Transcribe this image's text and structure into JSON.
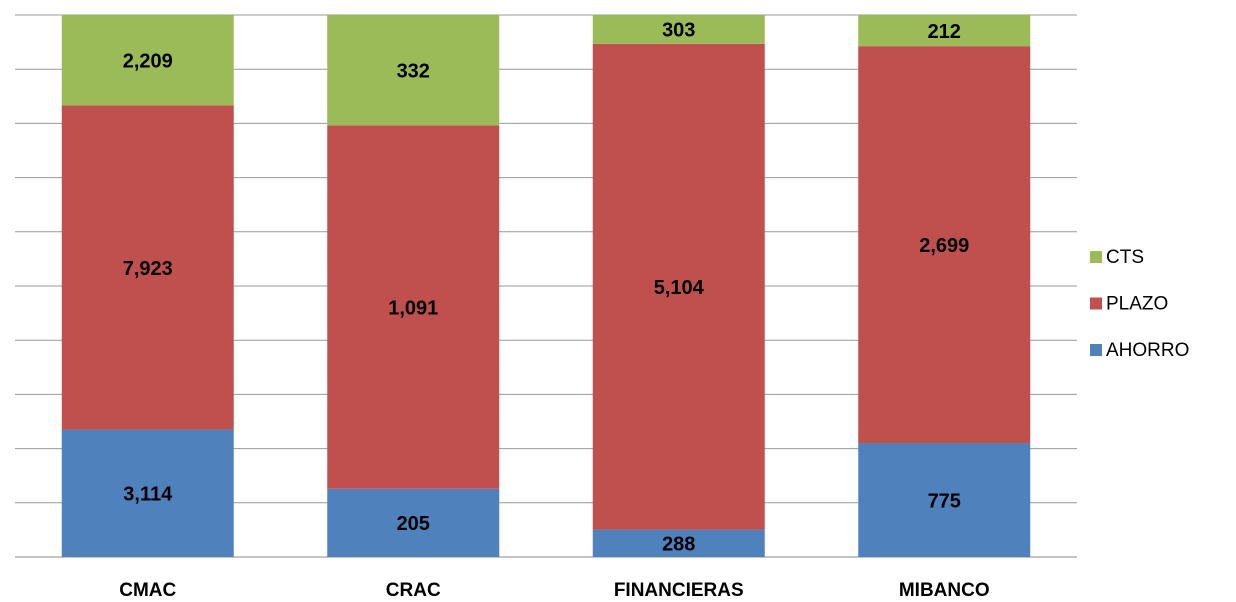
{
  "chart_data": {
    "type": "bar",
    "stacking": "percent",
    "categories": [
      "CMAC",
      "CRAC",
      "FINANCIERAS",
      "MIBANCO"
    ],
    "series": [
      {
        "name": "AHORRO",
        "color": "#4f81bd",
        "values": [
          3114,
          205,
          288,
          775
        ],
        "value_labels": [
          "3,114",
          "205",
          "288",
          "775"
        ]
      },
      {
        "name": "PLAZO",
        "color": "#c0504d",
        "values": [
          7923,
          1091,
          5104,
          2699
        ],
        "value_labels": [
          "7,923",
          "1,091",
          "5,104",
          "2,699"
        ]
      },
      {
        "name": "CTS",
        "color": "#9bbb59",
        "values": [
          2209,
          332,
          303,
          212
        ],
        "value_labels": [
          "2,209",
          "332",
          "303",
          "212"
        ]
      }
    ],
    "ylim": [
      0,
      100
    ],
    "yticks": [
      0,
      10,
      20,
      30,
      40,
      50,
      60,
      70,
      80,
      90,
      100
    ],
    "grid": true,
    "legend": "right"
  }
}
